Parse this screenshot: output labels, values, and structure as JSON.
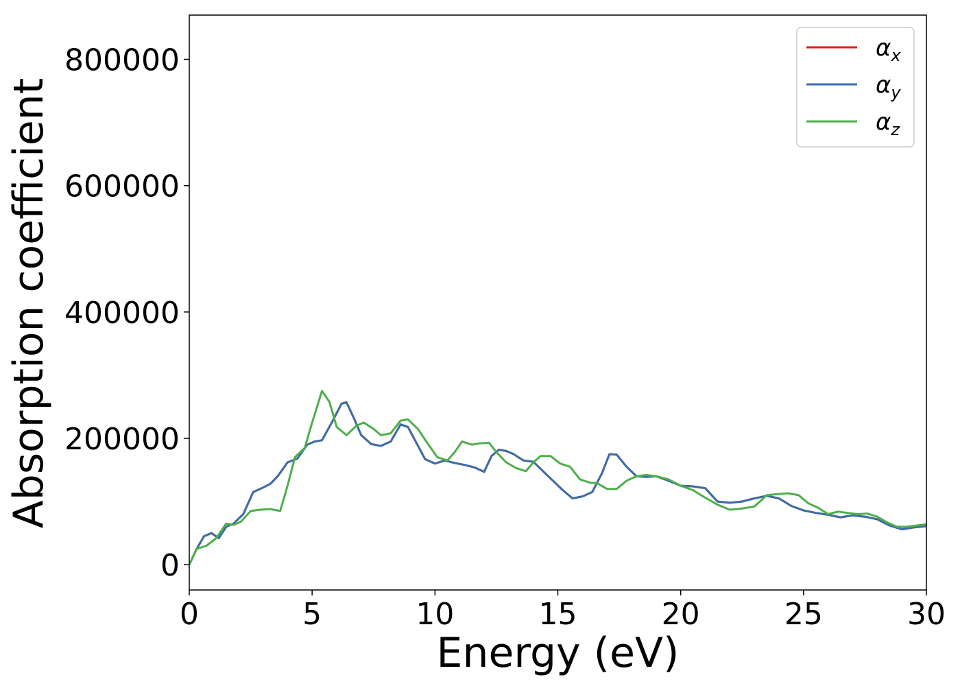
{
  "chart_data": {
    "type": "line",
    "title": "",
    "xlabel": "Energy (eV)",
    "ylabel": "Absorption coefficient",
    "xlim": [
      0,
      30
    ],
    "ylim": [
      -40000,
      870000
    ],
    "xticks": [
      0,
      5,
      10,
      15,
      20,
      25,
      30
    ],
    "xtick_labels": [
      "0",
      "5",
      "10",
      "15",
      "20",
      "25",
      "30"
    ],
    "yticks": [
      0,
      200000,
      400000,
      600000,
      800000
    ],
    "ytick_labels": [
      "0",
      "200000",
      "400000",
      "600000",
      "800000"
    ],
    "grid": false,
    "legend_position": "top-right",
    "series": [
      {
        "name": "α",
        "name_sub": "x",
        "color": "#e41a1c",
        "x": [
          0,
          0.3,
          0.6,
          0.9,
          1.2,
          1.5,
          1.8,
          2.2,
          2.6,
          3.0,
          3.3,
          3.6,
          4.0,
          4.4,
          4.8,
          5.1,
          5.4,
          5.8,
          6.2,
          6.4,
          6.7,
          7.0,
          7.4,
          7.8,
          8.2,
          8.6,
          8.9,
          9.2,
          9.6,
          10.0,
          10.4,
          10.8,
          11.2,
          11.6,
          12.0,
          12.3,
          12.6,
          12.9,
          13.2,
          13.6,
          14.0,
          14.4,
          14.8,
          15.2,
          15.6,
          16.0,
          16.4,
          16.8,
          17.1,
          17.4,
          17.8,
          18.2,
          18.6,
          19.0,
          19.5,
          20.0,
          20.5,
          21.0,
          21.5,
          22.0,
          22.5,
          23.0,
          23.5,
          24.0,
          24.5,
          25.0,
          25.5,
          26.0,
          26.5,
          27.0,
          27.5,
          28.0,
          28.5,
          29.0,
          29.5,
          30.0
        ],
        "values": [
          0,
          25000,
          45000,
          50000,
          42000,
          60000,
          65000,
          80000,
          115000,
          122000,
          128000,
          140000,
          162000,
          168000,
          190000,
          195000,
          197000,
          225000,
          255000,
          257000,
          232000,
          205000,
          191000,
          188000,
          195000,
          222000,
          218000,
          196000,
          167000,
          160000,
          165000,
          161000,
          158000,
          154000,
          147000,
          172000,
          182000,
          180000,
          175000,
          165000,
          163000,
          148000,
          133000,
          118000,
          105000,
          108000,
          115000,
          145000,
          175000,
          174000,
          155000,
          140000,
          139000,
          140000,
          133000,
          125000,
          124000,
          121000,
          100000,
          98000,
          100000,
          105000,
          109000,
          105000,
          93000,
          86000,
          82000,
          79000,
          75000,
          78000,
          76000,
          72000,
          62000,
          56000,
          59000,
          61000
        ]
      },
      {
        "name": "α",
        "name_sub": "y",
        "color": "#3a6fa9",
        "x": [
          0,
          0.3,
          0.6,
          0.9,
          1.2,
          1.5,
          1.8,
          2.2,
          2.6,
          3.0,
          3.3,
          3.6,
          4.0,
          4.4,
          4.8,
          5.1,
          5.4,
          5.8,
          6.2,
          6.4,
          6.7,
          7.0,
          7.4,
          7.8,
          8.2,
          8.6,
          8.9,
          9.2,
          9.6,
          10.0,
          10.4,
          10.8,
          11.2,
          11.6,
          12.0,
          12.3,
          12.6,
          12.9,
          13.2,
          13.6,
          14.0,
          14.4,
          14.8,
          15.2,
          15.6,
          16.0,
          16.4,
          16.8,
          17.1,
          17.4,
          17.8,
          18.2,
          18.6,
          19.0,
          19.5,
          20.0,
          20.5,
          21.0,
          21.5,
          22.0,
          22.5,
          23.0,
          23.5,
          24.0,
          24.5,
          25.0,
          25.5,
          26.0,
          26.5,
          27.0,
          27.5,
          28.0,
          28.5,
          29.0,
          29.5,
          30.0
        ],
        "values": [
          0,
          25000,
          45000,
          50000,
          42000,
          60000,
          65000,
          80000,
          115000,
          122000,
          128000,
          140000,
          162000,
          168000,
          190000,
          195000,
          197000,
          225000,
          255000,
          257000,
          232000,
          205000,
          191000,
          188000,
          195000,
          222000,
          218000,
          196000,
          167000,
          160000,
          165000,
          161000,
          158000,
          154000,
          147000,
          172000,
          182000,
          180000,
          175000,
          165000,
          163000,
          148000,
          133000,
          118000,
          105000,
          108000,
          115000,
          145000,
          175000,
          174000,
          155000,
          140000,
          139000,
          140000,
          133000,
          125000,
          124000,
          121000,
          100000,
          98000,
          100000,
          105000,
          109000,
          105000,
          93000,
          86000,
          82000,
          79000,
          75000,
          78000,
          76000,
          72000,
          62000,
          56000,
          59000,
          61000
        ]
      },
      {
        "name": "α",
        "name_sub": "z",
        "color": "#4daf4a",
        "x": [
          0,
          0.3,
          0.7,
          1.1,
          1.5,
          1.8,
          2.1,
          2.5,
          2.9,
          3.3,
          3.7,
          4.0,
          4.3,
          4.7,
          5.0,
          5.4,
          5.7,
          6.0,
          6.4,
          6.8,
          7.1,
          7.5,
          7.8,
          8.2,
          8.6,
          8.9,
          9.3,
          9.7,
          10.1,
          10.5,
          10.8,
          11.1,
          11.5,
          11.8,
          12.2,
          12.5,
          12.9,
          13.3,
          13.7,
          14.0,
          14.3,
          14.7,
          15.1,
          15.5,
          15.9,
          16.3,
          16.6,
          17.0,
          17.4,
          17.8,
          18.2,
          18.6,
          19.0,
          19.5,
          20.0,
          20.5,
          21.0,
          21.5,
          22.0,
          22.5,
          23.0,
          23.5,
          24.0,
          24.4,
          24.8,
          25.2,
          25.6,
          26.0,
          26.4,
          26.8,
          27.2,
          27.6,
          28.0,
          28.4,
          28.8,
          29.2,
          29.6,
          30.0
        ],
        "values": [
          0,
          25000,
          30000,
          42000,
          65000,
          63000,
          68000,
          85000,
          87000,
          88000,
          85000,
          125000,
          170000,
          185000,
          225000,
          275000,
          258000,
          218000,
          205000,
          220000,
          225000,
          215000,
          205000,
          208000,
          228000,
          230000,
          215000,
          192000,
          170000,
          165000,
          178000,
          195000,
          190000,
          192000,
          193000,
          178000,
          162000,
          153000,
          148000,
          162000,
          172000,
          172000,
          160000,
          155000,
          135000,
          130000,
          129000,
          120000,
          120000,
          133000,
          140000,
          142000,
          140000,
          135000,
          125000,
          118000,
          106000,
          95000,
          87000,
          89000,
          92000,
          110000,
          112000,
          113000,
          110000,
          97000,
          90000,
          80000,
          84000,
          82000,
          80000,
          81000,
          76000,
          67000,
          60000,
          60000,
          62000,
          64000
        ]
      }
    ]
  }
}
